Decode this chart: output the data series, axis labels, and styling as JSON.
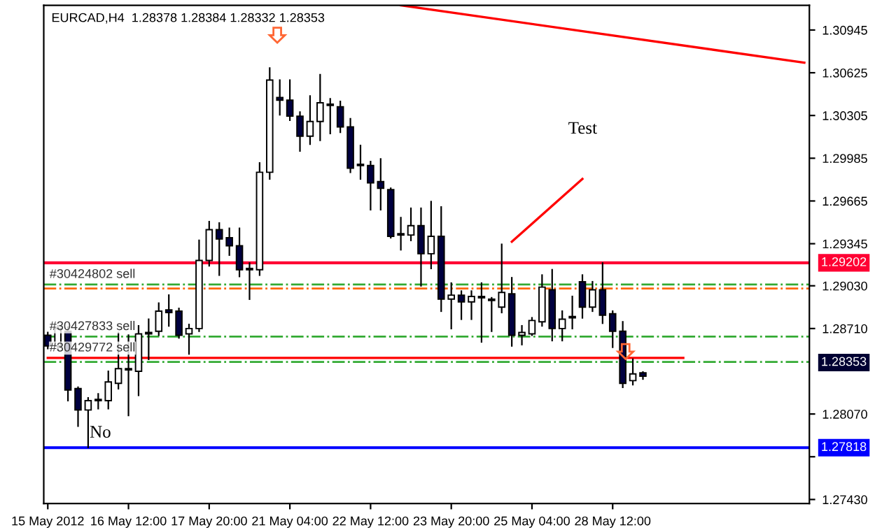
{
  "chart_data": {
    "type": "candlestick",
    "title": "EURCAD,H4  1.28378 1.28384 1.28332 1.28353",
    "categories": [
      "15 May 2012",
      null,
      null,
      null,
      null,
      null,
      null,
      null,
      "16 May 12:00",
      null,
      null,
      null,
      null,
      null,
      null,
      null,
      "17 May 20:00",
      null,
      null,
      null,
      null,
      null,
      null,
      null,
      "21 May 04:00",
      null,
      null,
      null,
      null,
      null,
      null,
      null,
      "22 May 12:00",
      null,
      null,
      null,
      null,
      null,
      null,
      null,
      "23 May 20:00",
      null,
      null,
      null,
      null,
      null,
      null,
      null,
      "25 May 04:00",
      null,
      null,
      null,
      null,
      null,
      null,
      null,
      "28 May 12:00",
      null,
      null,
      null,
      null,
      null,
      null,
      null,
      null,
      null,
      null,
      null,
      null,
      null,
      null,
      null,
      null,
      null,
      null,
      null
    ],
    "ohlc": [
      [
        1.2866,
        1.2868,
        1.2856,
        1.2858
      ],
      [
        1.2858,
        1.2873,
        1.2855,
        1.2871
      ],
      [
        1.2869,
        1.2872,
        1.2817,
        1.2825
      ],
      [
        1.2826,
        1.2827,
        1.2798,
        1.281
      ],
      [
        1.281,
        1.2819,
        1.2782,
        1.2817
      ],
      [
        1.2817,
        1.2822,
        1.2811,
        1.2818
      ],
      [
        1.2817,
        1.2839,
        1.2811,
        1.2831
      ],
      [
        1.283,
        1.2868,
        1.2826,
        1.2841
      ],
      [
        1.284,
        1.2866,
        1.2806,
        1.2841
      ],
      [
        1.2839,
        1.2873,
        1.2821,
        1.2867
      ],
      [
        1.2867,
        1.2878,
        1.2848,
        1.2868
      ],
      [
        1.2869,
        1.289,
        1.2866,
        1.2884
      ],
      [
        1.2885,
        1.2896,
        1.2873,
        1.2883
      ],
      [
        1.2884,
        1.2886,
        1.2864,
        1.2866
      ],
      [
        1.2867,
        1.2874,
        1.2852,
        1.2871
      ],
      [
        1.2871,
        1.2937,
        1.2869,
        1.2922
      ],
      [
        1.2922,
        1.2951,
        1.2918,
        1.2945
      ],
      [
        1.2945,
        1.295,
        1.2911,
        1.2938
      ],
      [
        1.2939,
        1.2946,
        1.2926,
        1.2933
      ],
      [
        1.2933,
        1.2946,
        1.291,
        1.2915
      ],
      [
        1.2915,
        1.292,
        1.2893,
        1.2916
      ],
      [
        1.2915,
        1.2995,
        1.2911,
        1.2988
      ],
      [
        1.2988,
        1.3066,
        1.2983,
        1.3057
      ],
      [
        1.3044,
        1.3057,
        1.3031,
        1.3042
      ],
      [
        1.3042,
        1.3057,
        1.3027,
        1.303
      ],
      [
        1.303,
        1.3033,
        1.3004,
        1.3015
      ],
      [
        1.3015,
        1.3045,
        1.3009,
        1.3026
      ],
      [
        1.3026,
        1.3061,
        1.3012,
        1.304
      ],
      [
        1.3039,
        1.3043,
        1.3017,
        1.3038
      ],
      [
        1.3037,
        1.3041,
        1.3018,
        1.3022
      ],
      [
        1.3022,
        1.3028,
        1.2988,
        1.2991
      ],
      [
        1.2993,
        1.3008,
        1.2983,
        1.2994
      ],
      [
        1.2993,
        1.2996,
        1.296,
        1.298
      ],
      [
        1.2981,
        1.2998,
        1.296,
        1.2976
      ],
      [
        1.2975,
        1.2976,
        1.2939,
        1.294
      ],
      [
        1.2941,
        1.2954,
        1.293,
        1.2942
      ],
      [
        1.2941,
        1.2961,
        1.2937,
        1.2948
      ],
      [
        1.2948,
        1.2961,
        1.2903,
        1.2927
      ],
      [
        1.2927,
        1.2966,
        1.2916,
        1.294
      ],
      [
        1.294,
        1.2962,
        1.2884,
        1.2893
      ],
      [
        1.2893,
        1.2905,
        1.2871,
        1.2896
      ],
      [
        1.2896,
        1.2899,
        1.2878,
        1.2891
      ],
      [
        1.2891,
        1.2899,
        1.2878,
        1.2895
      ],
      [
        1.2894,
        1.2905,
        1.2861,
        1.2895
      ],
      [
        1.2893,
        1.2894,
        1.2869,
        1.2892
      ],
      [
        1.2887,
        1.2934,
        1.2883,
        1.2898
      ],
      [
        1.2897,
        1.2909,
        1.2858,
        1.2866
      ],
      [
        1.2866,
        1.2873,
        1.2859,
        1.2868
      ],
      [
        1.2867,
        1.2879,
        1.2866,
        1.2877
      ],
      [
        1.2876,
        1.2911,
        1.2873,
        1.2902
      ],
      [
        1.29,
        1.2915,
        1.2862,
        1.2871
      ],
      [
        1.2871,
        1.2884,
        1.2862,
        1.2878
      ],
      [
        1.2879,
        1.2895,
        1.2871,
        1.288
      ],
      [
        1.2906,
        1.2911,
        1.2879,
        1.2887
      ],
      [
        1.2887,
        1.2906,
        1.2884,
        1.29
      ],
      [
        1.29,
        1.292,
        1.2875,
        1.2881
      ],
      [
        1.2882,
        1.2884,
        1.2857,
        1.2869
      ],
      [
        1.2869,
        1.2876,
        1.2827,
        1.283
      ],
      [
        1.2832,
        1.2848,
        1.2829,
        1.2837
      ],
      [
        1.28378,
        1.28384,
        1.28332,
        1.28353
      ],
      null,
      null,
      null,
      null,
      null,
      null,
      null,
      null,
      null,
      null,
      null,
      null,
      null,
      null,
      null,
      null
    ],
    "colors": [
      "#000040",
      "#ffffff",
      "#000040",
      "#000040",
      "#ffffff",
      "#ffffff",
      "#ffffff",
      "#ffffff",
      "#ffffff",
      "#ffffff",
      "#ffffff",
      "#ffffff",
      "#000040",
      "#000040",
      "#ffffff",
      "#ffffff",
      "#ffffff",
      "#000040",
      "#000040",
      "#000040",
      "#ffffff",
      "#ffffff",
      "#ffffff",
      "#000040",
      "#000040",
      "#000040",
      "#ffffff",
      "#ffffff",
      "#000040",
      "#000040",
      "#000040",
      "#ffffff",
      "#000040",
      "#000040",
      "#000040",
      "#ffffff",
      "#ffffff",
      "#000040",
      "#ffffff",
      "#000040",
      "#ffffff",
      "#000040",
      "#ffffff",
      "#ffffff",
      "#000040",
      "#ffffff",
      "#000040",
      "#ffffff",
      "#ffffff",
      "#ffffff",
      "#000040",
      "#ffffff",
      "#ffffff",
      "#000040",
      "#ffffff",
      "#000040",
      "#000040",
      "#000040",
      "#ffffff",
      "#000040",
      null,
      null,
      null,
      null,
      null,
      null,
      null,
      null,
      null,
      null,
      null,
      null,
      null,
      null,
      null,
      null
    ],
    "series": [
      {
        "type": "line",
        "color": "#ff0000",
        "values": [
          null,
          null,
          null,
          null,
          null,
          null,
          null,
          null,
          null,
          null,
          null,
          null,
          null,
          null,
          null,
          null,
          null,
          null,
          null,
          null,
          null,
          null,
          null,
          null,
          null,
          null,
          null,
          null,
          null,
          null,
          null,
          null,
          null,
          null,
          null,
          1.3113,
          null,
          null,
          null,
          null,
          null,
          null,
          null,
          null,
          null,
          null,
          null,
          null,
          null,
          null,
          null,
          null,
          null,
          null,
          null,
          null,
          null,
          null,
          null,
          null,
          null,
          null,
          null,
          null,
          null,
          null,
          null,
          null,
          null,
          null,
          null,
          null,
          null,
          null,
          null,
          1.307
        ]
      },
      {
        "type": "line",
        "color": "#ff0000",
        "values": [
          null,
          null,
          null,
          null,
          null,
          null,
          null,
          null,
          null,
          null,
          null,
          null,
          null,
          null,
          null,
          null,
          null,
          null,
          null,
          null,
          null,
          null,
          null,
          null,
          null,
          null,
          null,
          null,
          null,
          null,
          null,
          null,
          null,
          null,
          null,
          null,
          null,
          null,
          null,
          null,
          null,
          null,
          null,
          null,
          null,
          null,
          1.2936,
          null,
          null,
          null,
          null,
          null,
          null,
          1.2983,
          null,
          null,
          null,
          null,
          null,
          null,
          null,
          null,
          null,
          null,
          null,
          null,
          null,
          null,
          null,
          null,
          null,
          null,
          null,
          null,
          null,
          null
        ]
      },
      {
        "type": "line",
        "color": "#ff0000",
        "values": [
          1.2849,
          null,
          null,
          null,
          null,
          null,
          null,
          null,
          null,
          null,
          null,
          null,
          null,
          null,
          null,
          null,
          null,
          null,
          null,
          null,
          null,
          null,
          null,
          null,
          null,
          null,
          null,
          null,
          null,
          null,
          null,
          null,
          null,
          null,
          null,
          null,
          null,
          null,
          null,
          null,
          null,
          null,
          null,
          null,
          null,
          null,
          null,
          null,
          null,
          null,
          null,
          null,
          null,
          null,
          null,
          null,
          null,
          null,
          null,
          null,
          null,
          null,
          null,
          1.2849,
          null,
          null,
          null,
          null,
          null,
          null,
          null,
          null,
          null,
          null,
          null,
          null
        ]
      }
    ],
    "ref_lines": [
      {
        "axis": "y",
        "value": 1.29202,
        "label": "1.29202",
        "color": "#ff0033",
        "line_style": "solid"
      },
      {
        "axis": "y",
        "value": 1.27818,
        "label": "1.27818",
        "color": "#0000ff",
        "line_style": "solid"
      },
      {
        "axis": "y",
        "value": 1.2904,
        "color": "#33aa33",
        "line_style": "dashdot"
      },
      {
        "axis": "y",
        "value": 1.2901,
        "color": "#ff6600",
        "line_style": "dashdot"
      },
      {
        "axis": "y",
        "value": 1.2865,
        "color": "#33aa33",
        "line_style": "dashdot"
      },
      {
        "axis": "y",
        "value": 1.2846,
        "color": "#33aa33",
        "line_style": "dashdot"
      }
    ],
    "annotations": [
      {
        "text": "#30424802 sell",
        "y": 1.2904
      },
      {
        "text": "#30427833 sell",
        "y": 1.2865
      },
      {
        "text": "#30429772 sell",
        "y": 1.2849
      },
      "Test",
      "No",
      "1.28353"
    ],
    "ylim": [
      1.274,
      1.3113
    ],
    "yticks": [
      {
        "value": 1.2743,
        "label": "1.27430"
      },
      {
        "value": 1.2775,
        "label": null
      },
      {
        "value": 1.2807,
        "label": "1.28070"
      },
      {
        "value": 1.2871,
        "label": "1.28710"
      },
      {
        "value": 1.2903,
        "label": "1.29030"
      },
      1.29345,
      1.29665,
      1.29985,
      1.30305,
      1.30625,
      1.30945
    ],
    "grid": false,
    "legend": false
  }
}
